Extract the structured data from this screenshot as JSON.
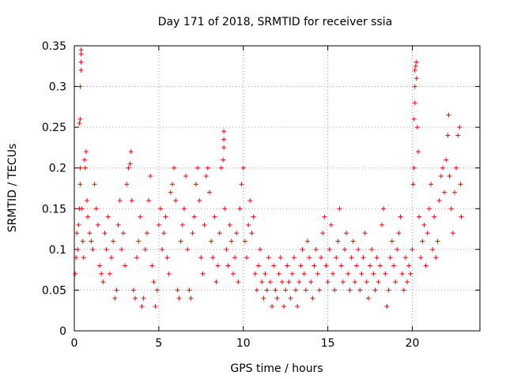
{
  "chart_data": {
    "type": "scatter",
    "title": "Day 171 of 2018, SRMTID for receiver ssia",
    "xlabel": "GPS time / hours",
    "ylabel": "SRMTID / TECUs",
    "xlim": [
      0,
      24
    ],
    "ylim": [
      0,
      0.35
    ],
    "xticks": [
      0,
      5,
      10,
      15,
      20
    ],
    "xtick_labels": [
      "0",
      "5",
      "10",
      "15",
      "20"
    ],
    "yticks": [
      0,
      0.05,
      0.1,
      0.15,
      0.2,
      0.25,
      0.3,
      0.35
    ],
    "ytick_labels": [
      "0",
      "0.05",
      "0.1",
      "0.15",
      "0.2",
      "0.25",
      "0.3",
      "0.35"
    ],
    "grid": true,
    "marker": "plus",
    "color": "#ff0000",
    "series": [
      {
        "name": "SRMTID",
        "points": [
          [
            0.05,
            0.07
          ],
          [
            0.1,
            0.09
          ],
          [
            0.15,
            0.12
          ],
          [
            0.2,
            0.1
          ],
          [
            0.25,
            0.13
          ],
          [
            0.3,
            0.15
          ],
          [
            0.35,
            0.18
          ],
          [
            0.35,
            0.2
          ],
          [
            0.35,
            0.26
          ],
          [
            0.3,
            0.255
          ],
          [
            0.35,
            0.3
          ],
          [
            0.4,
            0.32
          ],
          [
            0.4,
            0.33
          ],
          [
            0.4,
            0.34
          ],
          [
            0.4,
            0.345
          ],
          [
            0.45,
            0.15
          ],
          [
            0.5,
            0.11
          ],
          [
            0.55,
            0.09
          ],
          [
            0.6,
            0.21
          ],
          [
            0.65,
            0.2
          ],
          [
            0.7,
            0.22
          ],
          [
            0.75,
            0.16
          ],
          [
            0.8,
            0.14
          ],
          [
            0.9,
            0.12
          ],
          [
            1.0,
            0.11
          ],
          [
            1.1,
            0.1
          ],
          [
            1.2,
            0.18
          ],
          [
            1.3,
            0.15
          ],
          [
            1.4,
            0.13
          ],
          [
            1.5,
            0.08
          ],
          [
            1.6,
            0.07
          ],
          [
            1.7,
            0.06
          ],
          [
            1.8,
            0.12
          ],
          [
            1.9,
            0.1
          ],
          [
            2.0,
            0.14
          ],
          [
            2.1,
            0.07
          ],
          [
            2.2,
            0.09
          ],
          [
            2.3,
            0.11
          ],
          [
            2.4,
            0.04
          ],
          [
            2.5,
            0.05
          ],
          [
            2.6,
            0.13
          ],
          [
            2.7,
            0.16
          ],
          [
            2.8,
            0.1
          ],
          [
            2.9,
            0.12
          ],
          [
            3.0,
            0.08
          ],
          [
            3.1,
            0.18
          ],
          [
            3.2,
            0.2
          ],
          [
            3.3,
            0.205
          ],
          [
            3.35,
            0.22
          ],
          [
            3.4,
            0.16
          ],
          [
            3.5,
            0.05
          ],
          [
            3.6,
            0.04
          ],
          [
            3.7,
            0.09
          ],
          [
            3.8,
            0.11
          ],
          [
            3.9,
            0.14
          ],
          [
            4.0,
            0.03
          ],
          [
            4.1,
            0.04
          ],
          [
            4.2,
            0.1
          ],
          [
            4.3,
            0.12
          ],
          [
            4.4,
            0.16
          ],
          [
            4.5,
            0.19
          ],
          [
            4.6,
            0.08
          ],
          [
            4.7,
            0.06
          ],
          [
            4.8,
            0.03
          ],
          [
            4.9,
            0.05
          ],
          [
            5.0,
            0.13
          ],
          [
            5.1,
            0.15
          ],
          [
            5.2,
            0.1
          ],
          [
            5.3,
            0.12
          ],
          [
            5.4,
            0.14
          ],
          [
            5.5,
            0.09
          ],
          [
            5.6,
            0.07
          ],
          [
            5.7,
            0.17
          ],
          [
            5.8,
            0.18
          ],
          [
            5.9,
            0.2
          ],
          [
            6.0,
            0.16
          ],
          [
            6.1,
            0.05
          ],
          [
            6.2,
            0.04
          ],
          [
            6.3,
            0.11
          ],
          [
            6.4,
            0.13
          ],
          [
            6.5,
            0.15
          ],
          [
            6.6,
            0.19
          ],
          [
            6.7,
            0.1
          ],
          [
            6.8,
            0.05
          ],
          [
            6.9,
            0.04
          ],
          [
            7.0,
            0.12
          ],
          [
            7.1,
            0.14
          ],
          [
            7.2,
            0.18
          ],
          [
            7.3,
            0.2
          ],
          [
            7.4,
            0.16
          ],
          [
            7.5,
            0.09
          ],
          [
            7.6,
            0.07
          ],
          [
            7.7,
            0.13
          ],
          [
            7.8,
            0.19
          ],
          [
            7.9,
            0.2
          ],
          [
            8.0,
            0.17
          ],
          [
            8.1,
            0.11
          ],
          [
            8.2,
            0.09
          ],
          [
            8.3,
            0.14
          ],
          [
            8.4,
            0.06
          ],
          [
            8.5,
            0.08
          ],
          [
            8.6,
            0.12
          ],
          [
            8.7,
            0.2
          ],
          [
            8.8,
            0.21
          ],
          [
            8.85,
            0.225
          ],
          [
            8.85,
            0.235
          ],
          [
            8.85,
            0.245
          ],
          [
            8.9,
            0.15
          ],
          [
            9.0,
            0.1
          ],
          [
            9.1,
            0.08
          ],
          [
            9.2,
            0.13
          ],
          [
            9.3,
            0.11
          ],
          [
            9.4,
            0.07
          ],
          [
            9.5,
            0.09
          ],
          [
            9.6,
            0.12
          ],
          [
            9.7,
            0.06
          ],
          [
            9.8,
            0.15
          ],
          [
            9.9,
            0.18
          ],
          [
            10.0,
            0.2
          ],
          [
            10.1,
            0.11
          ],
          [
            10.2,
            0.09
          ],
          [
            10.3,
            0.13
          ],
          [
            10.4,
            0.16
          ],
          [
            10.5,
            0.12
          ],
          [
            10.6,
            0.14
          ],
          [
            10.7,
            0.07
          ],
          [
            10.8,
            0.05
          ],
          [
            10.9,
            0.08
          ],
          [
            11.0,
            0.1
          ],
          [
            11.1,
            0.06
          ],
          [
            11.2,
            0.04
          ],
          [
            11.3,
            0.07
          ],
          [
            11.4,
            0.05
          ],
          [
            11.5,
            0.09
          ],
          [
            11.6,
            0.06
          ],
          [
            11.7,
            0.03
          ],
          [
            11.8,
            0.08
          ],
          [
            11.9,
            0.05
          ],
          [
            12.0,
            0.04
          ],
          [
            12.1,
            0.07
          ],
          [
            12.2,
            0.09
          ],
          [
            12.3,
            0.06
          ],
          [
            12.4,
            0.03
          ],
          [
            12.5,
            0.05
          ],
          [
            12.6,
            0.08
          ],
          [
            12.7,
            0.06
          ],
          [
            12.8,
            0.04
          ],
          [
            12.9,
            0.07
          ],
          [
            13.0,
            0.09
          ],
          [
            13.1,
            0.05
          ],
          [
            13.2,
            0.03
          ],
          [
            13.3,
            0.06
          ],
          [
            13.4,
            0.08
          ],
          [
            13.5,
            0.1
          ],
          [
            13.6,
            0.07
          ],
          [
            13.7,
            0.05
          ],
          [
            13.8,
            0.11
          ],
          [
            13.9,
            0.09
          ],
          [
            14.0,
            0.06
          ],
          [
            14.1,
            0.04
          ],
          [
            14.2,
            0.08
          ],
          [
            14.3,
            0.1
          ],
          [
            14.4,
            0.07
          ],
          [
            14.5,
            0.05
          ],
          [
            14.6,
            0.09
          ],
          [
            14.7,
            0.12
          ],
          [
            14.8,
            0.14
          ],
          [
            14.9,
            0.08
          ],
          [
            15.0,
            0.06
          ],
          [
            15.1,
            0.1
          ],
          [
            15.2,
            0.13
          ],
          [
            15.3,
            0.07
          ],
          [
            15.4,
            0.05
          ],
          [
            15.5,
            0.09
          ],
          [
            15.6,
            0.11
          ],
          [
            15.7,
            0.15
          ],
          [
            15.8,
            0.08
          ],
          [
            15.9,
            0.06
          ],
          [
            16.0,
            0.1
          ],
          [
            16.1,
            0.12
          ],
          [
            16.2,
            0.07
          ],
          [
            16.3,
            0.05
          ],
          [
            16.4,
            0.09
          ],
          [
            16.5,
            0.11
          ],
          [
            16.6,
            0.06
          ],
          [
            16.7,
            0.08
          ],
          [
            16.8,
            0.1
          ],
          [
            16.9,
            0.05
          ],
          [
            17.0,
            0.07
          ],
          [
            17.1,
            0.09
          ],
          [
            17.2,
            0.12
          ],
          [
            17.3,
            0.06
          ],
          [
            17.4,
            0.04
          ],
          [
            17.5,
            0.08
          ],
          [
            17.6,
            0.1
          ],
          [
            17.7,
            0.07
          ],
          [
            17.8,
            0.05
          ],
          [
            17.9,
            0.09
          ],
          [
            18.0,
            0.06
          ],
          [
            18.1,
            0.08
          ],
          [
            18.2,
            0.13
          ],
          [
            18.3,
            0.15
          ],
          [
            18.4,
            0.07
          ],
          [
            18.5,
            0.03
          ],
          [
            18.6,
            0.05
          ],
          [
            18.7,
            0.09
          ],
          [
            18.8,
            0.11
          ],
          [
            18.9,
            0.08
          ],
          [
            19.0,
            0.06
          ],
          [
            19.1,
            0.1
          ],
          [
            19.2,
            0.12
          ],
          [
            19.3,
            0.14
          ],
          [
            19.4,
            0.07
          ],
          [
            19.5,
            0.05
          ],
          [
            19.6,
            0.09
          ],
          [
            19.7,
            0.06
          ],
          [
            19.8,
            0.08
          ],
          [
            19.9,
            0.07
          ],
          [
            20.0,
            0.1
          ],
          [
            20.05,
            0.18
          ],
          [
            20.1,
            0.2
          ],
          [
            20.1,
            0.26
          ],
          [
            20.15,
            0.28
          ],
          [
            20.15,
            0.3
          ],
          [
            20.15,
            0.32
          ],
          [
            20.2,
            0.325
          ],
          [
            20.25,
            0.33
          ],
          [
            20.25,
            0.31
          ],
          [
            20.3,
            0.25
          ],
          [
            20.35,
            0.22
          ],
          [
            20.4,
            0.14
          ],
          [
            20.5,
            0.09
          ],
          [
            20.6,
            0.11
          ],
          [
            20.7,
            0.13
          ],
          [
            20.8,
            0.08
          ],
          [
            20.9,
            0.12
          ],
          [
            21.0,
            0.15
          ],
          [
            21.1,
            0.18
          ],
          [
            21.2,
            0.1
          ],
          [
            21.3,
            0.14
          ],
          [
            21.4,
            0.09
          ],
          [
            21.5,
            0.11
          ],
          [
            21.6,
            0.16
          ],
          [
            21.7,
            0.19
          ],
          [
            21.8,
            0.2
          ],
          [
            21.9,
            0.17
          ],
          [
            22.0,
            0.21
          ],
          [
            22.1,
            0.24
          ],
          [
            22.15,
            0.265
          ],
          [
            22.2,
            0.19
          ],
          [
            22.3,
            0.15
          ],
          [
            22.4,
            0.12
          ],
          [
            22.5,
            0.17
          ],
          [
            22.6,
            0.2
          ],
          [
            22.7,
            0.24
          ],
          [
            22.8,
            0.25
          ],
          [
            22.85,
            0.18
          ],
          [
            22.9,
            0.14
          ]
        ]
      }
    ]
  }
}
